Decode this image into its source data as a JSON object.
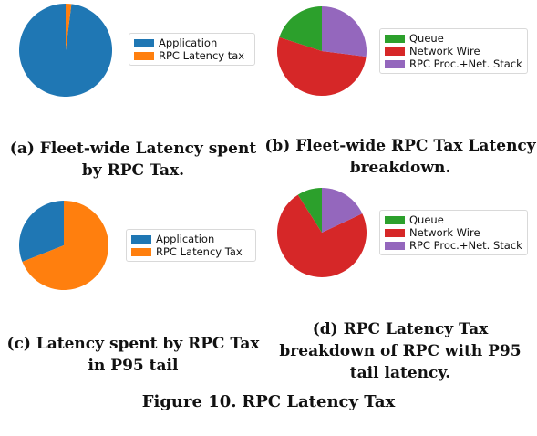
{
  "chart_data": [
    {
      "type": "pie",
      "panel": "a",
      "caption": "(a) Fleet-wide Latency spent by RPC Tax.",
      "categories": [
        "Application",
        "RPC Latency tax"
      ],
      "values": [
        98,
        2
      ],
      "colors": [
        "#1f77b4",
        "#ff7f0e"
      ],
      "legend": [
        "Application",
        "RPC Latency tax"
      ],
      "legend_position": "right"
    },
    {
      "type": "pie",
      "panel": "b",
      "caption": "(b) Fleet-wide RPC Tax Latency breakdown.",
      "categories": [
        "Queue",
        "Network Wire",
        "RPC Proc.+Net. Stack"
      ],
      "values": [
        20,
        53,
        27
      ],
      "colors": [
        "#2ca02c",
        "#d62728",
        "#9467bd"
      ],
      "legend": [
        "Queue",
        "Network Wire",
        "RPC Proc.+Net. Stack"
      ],
      "legend_position": "right"
    },
    {
      "type": "pie",
      "panel": "c",
      "caption": "(c) Latency spent by RPC Tax in P95 tail",
      "categories": [
        "Application",
        "RPC Latency Tax"
      ],
      "values": [
        31,
        69
      ],
      "colors": [
        "#1f77b4",
        "#ff7f0e"
      ],
      "legend": [
        "Application",
        "RPC  Latency Tax"
      ],
      "legend_position": "right"
    },
    {
      "type": "pie",
      "panel": "d",
      "caption": "(d) RPC Latency Tax breakdown of RPC with P95 tail latency.",
      "categories": [
        "Queue",
        "Network Wire",
        "RPC Proc.+Net. Stack"
      ],
      "values": [
        9,
        73,
        18
      ],
      "colors": [
        "#2ca02c",
        "#d62728",
        "#9467bd"
      ],
      "legend": [
        "Queue",
        "Network Wire",
        "RPC Proc.+Net. Stack"
      ],
      "legend_position": "right"
    }
  ],
  "figure_caption": {
    "label": "Figure 10.",
    "title": "RPC Latency Tax"
  }
}
